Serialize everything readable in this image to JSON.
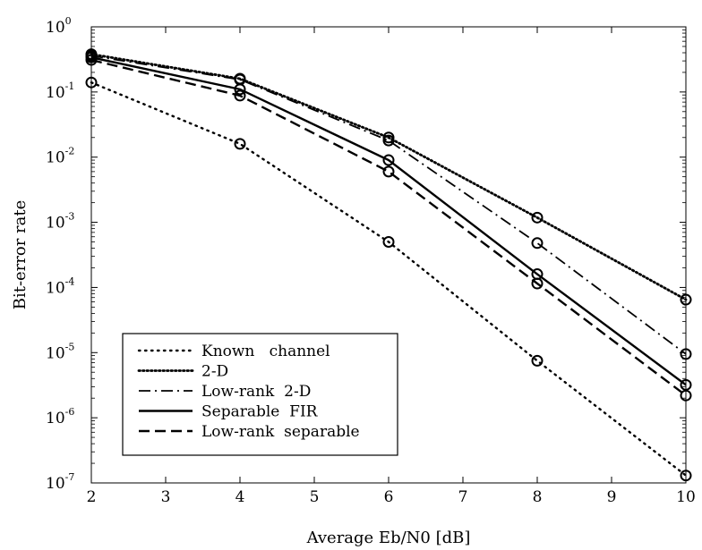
{
  "chart_data": {
    "type": "line",
    "title": "",
    "xlabel": "Average  Eb/N0  [dB]",
    "ylabel": "Bit-error  rate",
    "xlim": [
      2,
      10
    ],
    "ylim": [
      1e-07,
      1
    ],
    "y_scale": "log",
    "grid": false,
    "legend_position": "bottom-left",
    "x_ticks": [
      "2",
      "3",
      "4",
      "5",
      "6",
      "7",
      "8",
      "9",
      "10"
    ],
    "y_ticks": [
      {
        "base": "10",
        "exp": "0",
        "value": 1
      },
      {
        "base": "10",
        "exp": "-1",
        "value": 0.1
      },
      {
        "base": "10",
        "exp": "-2",
        "value": 0.01
      },
      {
        "base": "10",
        "exp": "-3",
        "value": 0.001
      },
      {
        "base": "10",
        "exp": "-4",
        "value": 0.0001
      },
      {
        "base": "10",
        "exp": "-5",
        "value": 1e-05
      },
      {
        "base": "10",
        "exp": "-6",
        "value": 1e-06
      },
      {
        "base": "10",
        "exp": "-7",
        "value": 1e-07
      }
    ],
    "x": [
      2,
      4,
      6,
      8,
      10
    ],
    "series": [
      {
        "name": "Known   channel",
        "style": "dotted",
        "values": [
          0.14,
          0.016,
          0.0005,
          7.5e-06,
          1.3e-07
        ]
      },
      {
        "name": "2-D",
        "style": "dense-dotted",
        "values": [
          0.38,
          0.16,
          0.02,
          0.00118,
          6.5e-05
        ]
      },
      {
        "name": "Low-rank  2-D",
        "style": "dashdot",
        "values": [
          0.36,
          0.155,
          0.018,
          0.00048,
          9.5e-06
        ]
      },
      {
        "name": "Separable  FIR",
        "style": "solid",
        "values": [
          0.34,
          0.11,
          0.009,
          0.00016,
          3.2e-06
        ]
      },
      {
        "name": "Low-rank  separable",
        "style": "dashed",
        "values": [
          0.31,
          0.088,
          0.006,
          0.000115,
          2.2e-06
        ]
      }
    ],
    "colors": {
      "line": "#000000",
      "background": "#ffffff"
    }
  }
}
